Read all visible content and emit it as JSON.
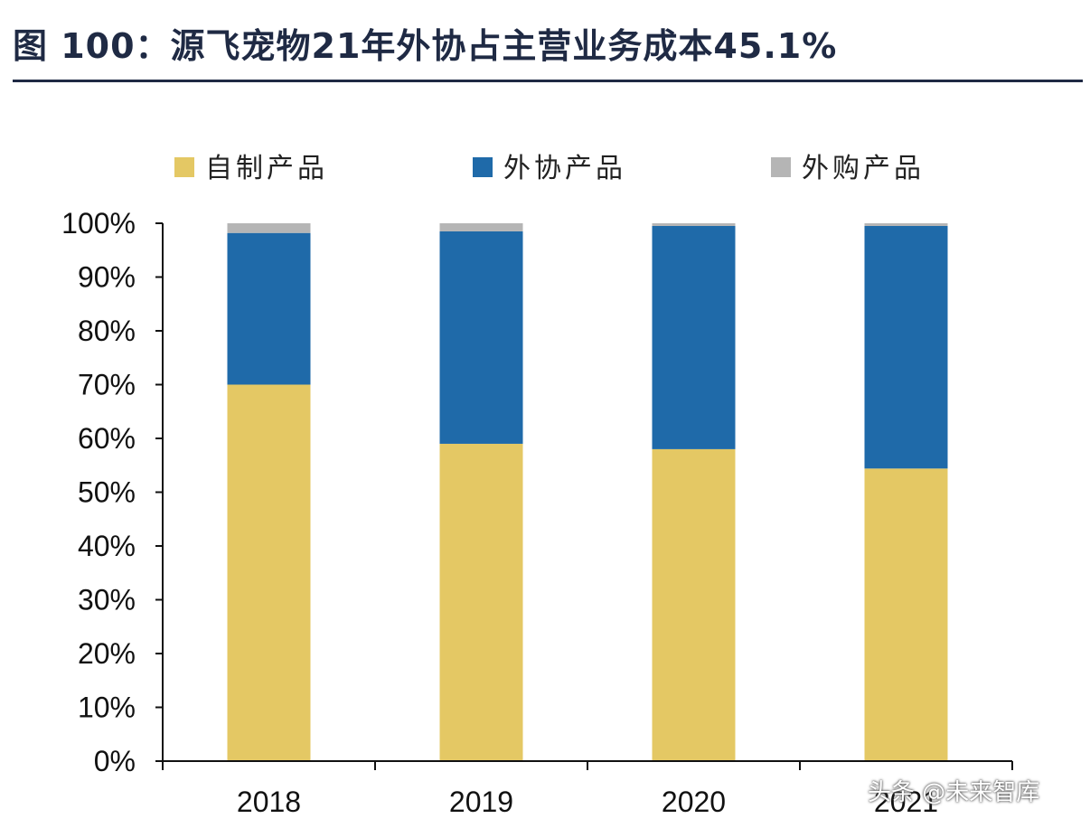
{
  "title": "图  100：源飞宠物21年外协占主营业务成本45.1%",
  "watermark": "头条 @未来智库",
  "chart_data": {
    "type": "bar",
    "stacked": true,
    "categories": [
      "2018",
      "2019",
      "2020",
      "2021"
    ],
    "series": [
      {
        "name": "自制产品",
        "color": "#e4c864",
        "values": [
          70.0,
          59.0,
          58.0,
          54.4
        ]
      },
      {
        "name": "外协产品",
        "color": "#1f6aa9",
        "values": [
          28.2,
          39.5,
          41.5,
          45.1
        ]
      },
      {
        "name": "外购产品",
        "color": "#b5b5b5",
        "values": [
          1.8,
          1.5,
          0.5,
          0.5
        ]
      }
    ],
    "ylim": [
      0,
      100
    ],
    "yticks": [
      "0%",
      "10%",
      "20%",
      "30%",
      "40%",
      "50%",
      "60%",
      "70%",
      "80%",
      "90%",
      "100%"
    ],
    "legend_position": "top",
    "grid": false,
    "xlabel": "",
    "ylabel": ""
  }
}
